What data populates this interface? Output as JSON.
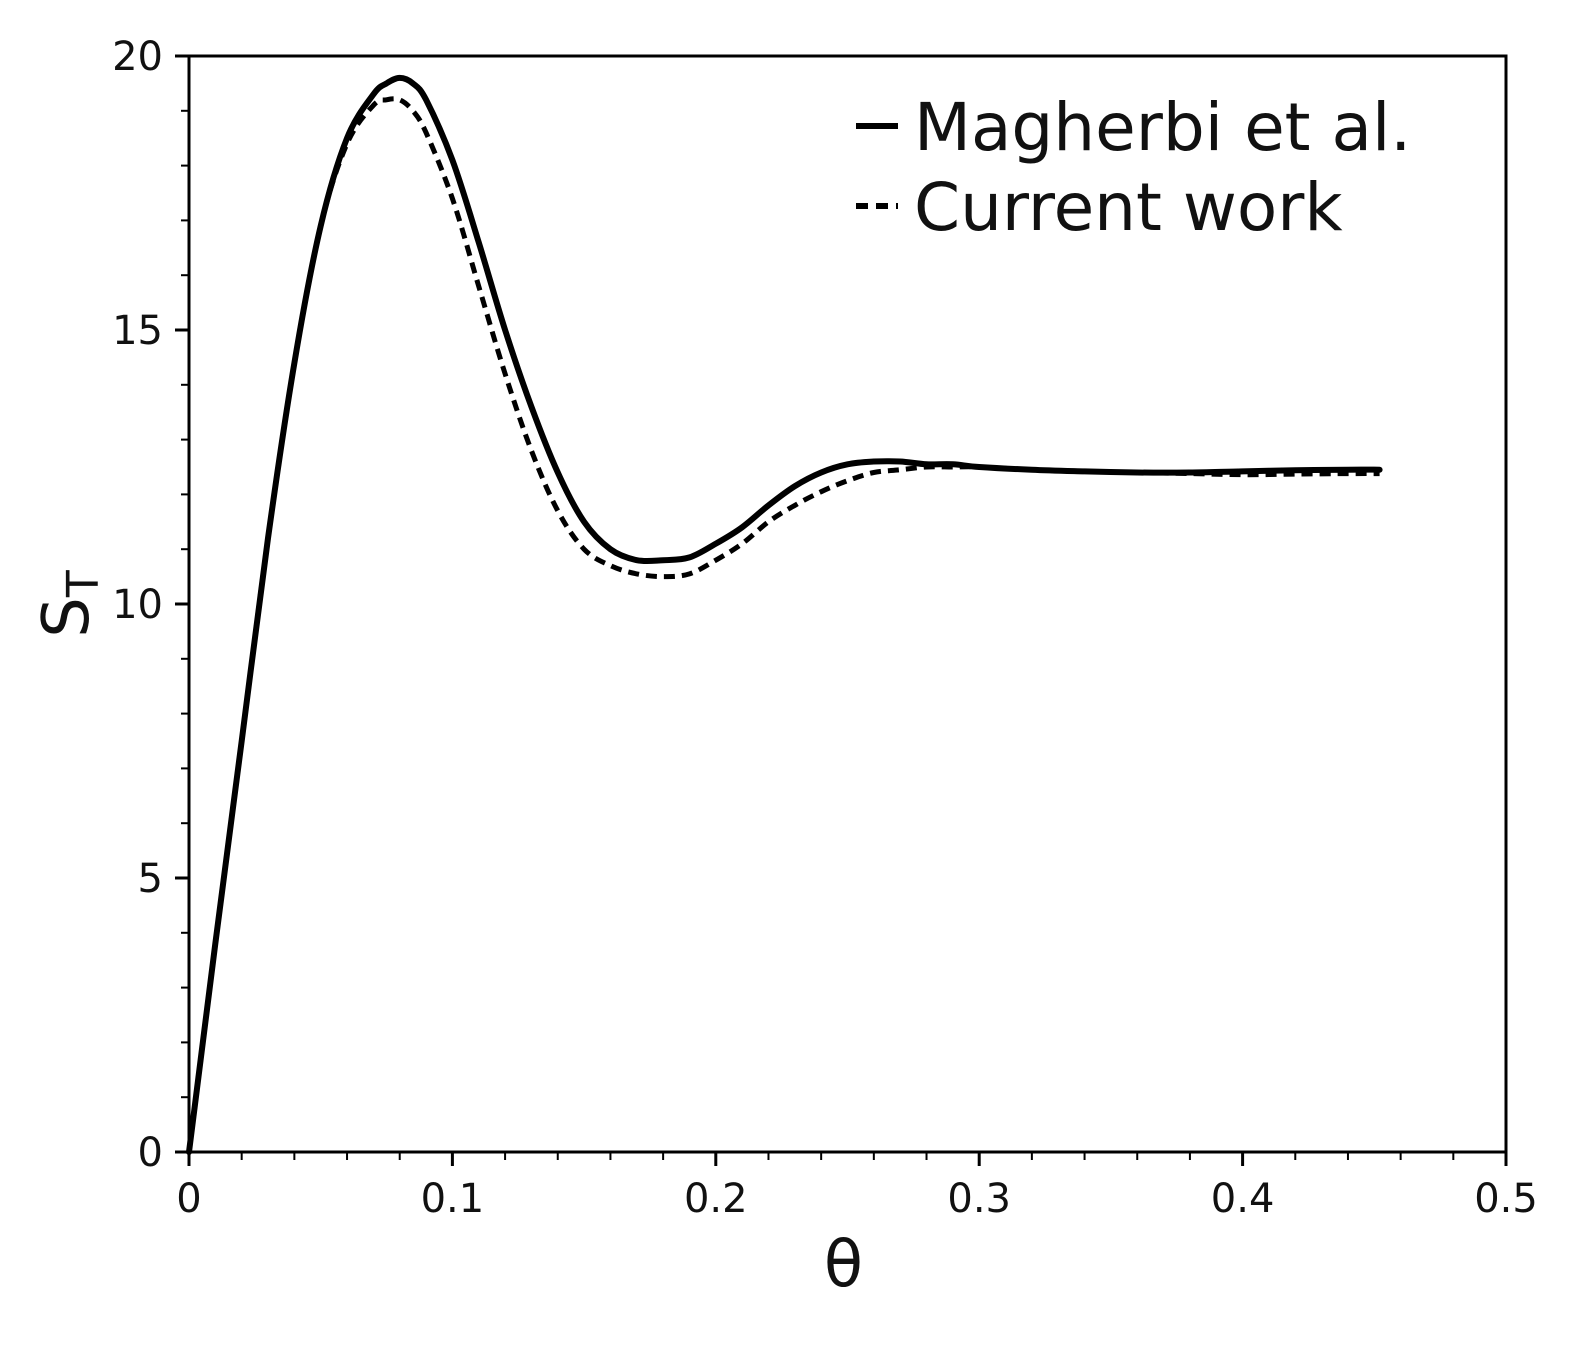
{
  "chart_data": {
    "type": "line",
    "xlabel": "θ",
    "ylabel_main": "S",
    "ylabel_sub": "T",
    "xlim": [
      0,
      0.5
    ],
    "ylim": [
      0,
      20
    ],
    "x_ticks": [
      {
        "value": 0,
        "label": "0"
      },
      {
        "value": 0.1,
        "label": "0.1"
      },
      {
        "value": 0.2,
        "label": "0.2"
      },
      {
        "value": 0.3,
        "label": "0.3"
      },
      {
        "value": 0.4,
        "label": "0.4"
      },
      {
        "value": 0.5,
        "label": "0.5"
      }
    ],
    "y_ticks": [
      {
        "value": 0,
        "label": "0"
      },
      {
        "value": 5,
        "label": "5"
      },
      {
        "value": 10,
        "label": "10"
      },
      {
        "value": 15,
        "label": "15"
      },
      {
        "value": 20,
        "label": "20"
      }
    ],
    "grid": false,
    "legend_position": "top-right",
    "series": [
      {
        "name": "Magherbi et al.",
        "style": "solid",
        "color": "#000000",
        "x": [
          0,
          0.01,
          0.02,
          0.03,
          0.04,
          0.05,
          0.06,
          0.07,
          0.075,
          0.08,
          0.085,
          0.09,
          0.1,
          0.11,
          0.12,
          0.13,
          0.14,
          0.15,
          0.16,
          0.17,
          0.18,
          0.19,
          0.2,
          0.21,
          0.22,
          0.23,
          0.24,
          0.25,
          0.26,
          0.27,
          0.28,
          0.29,
          0.3,
          0.32,
          0.34,
          0.36,
          0.38,
          0.4,
          0.42,
          0.44,
          0.452
        ],
        "y": [
          0,
          3.8,
          7.5,
          11.2,
          14.4,
          16.9,
          18.5,
          19.3,
          19.5,
          19.6,
          19.5,
          19.2,
          18.1,
          16.6,
          15.0,
          13.6,
          12.4,
          11.5,
          11.0,
          10.8,
          10.8,
          10.85,
          11.1,
          11.4,
          11.8,
          12.15,
          12.4,
          12.55,
          12.6,
          12.6,
          12.55,
          12.55,
          12.5,
          12.45,
          12.42,
          12.4,
          12.4,
          12.42,
          12.44,
          12.45,
          12.45
        ]
      },
      {
        "name": "Current work",
        "style": "dashed",
        "color": "#000000",
        "x": [
          0,
          0.01,
          0.02,
          0.03,
          0.04,
          0.05,
          0.06,
          0.07,
          0.075,
          0.08,
          0.085,
          0.09,
          0.1,
          0.11,
          0.12,
          0.13,
          0.14,
          0.15,
          0.16,
          0.17,
          0.18,
          0.19,
          0.2,
          0.21,
          0.22,
          0.23,
          0.24,
          0.25,
          0.26,
          0.27,
          0.28,
          0.29,
          0.3,
          0.32,
          0.34,
          0.36,
          0.38,
          0.4,
          0.42,
          0.44,
          0.452
        ],
        "y": [
          0,
          3.8,
          7.5,
          11.2,
          14.4,
          16.9,
          18.4,
          19.1,
          19.2,
          19.2,
          19.0,
          18.6,
          17.4,
          15.8,
          14.2,
          12.8,
          11.7,
          11.0,
          10.7,
          10.55,
          10.5,
          10.55,
          10.8,
          11.1,
          11.5,
          11.8,
          12.05,
          12.25,
          12.4,
          12.45,
          12.5,
          12.5,
          12.5,
          12.45,
          12.42,
          12.4,
          12.38,
          12.36,
          12.37,
          12.38,
          12.38
        ]
      }
    ]
  }
}
